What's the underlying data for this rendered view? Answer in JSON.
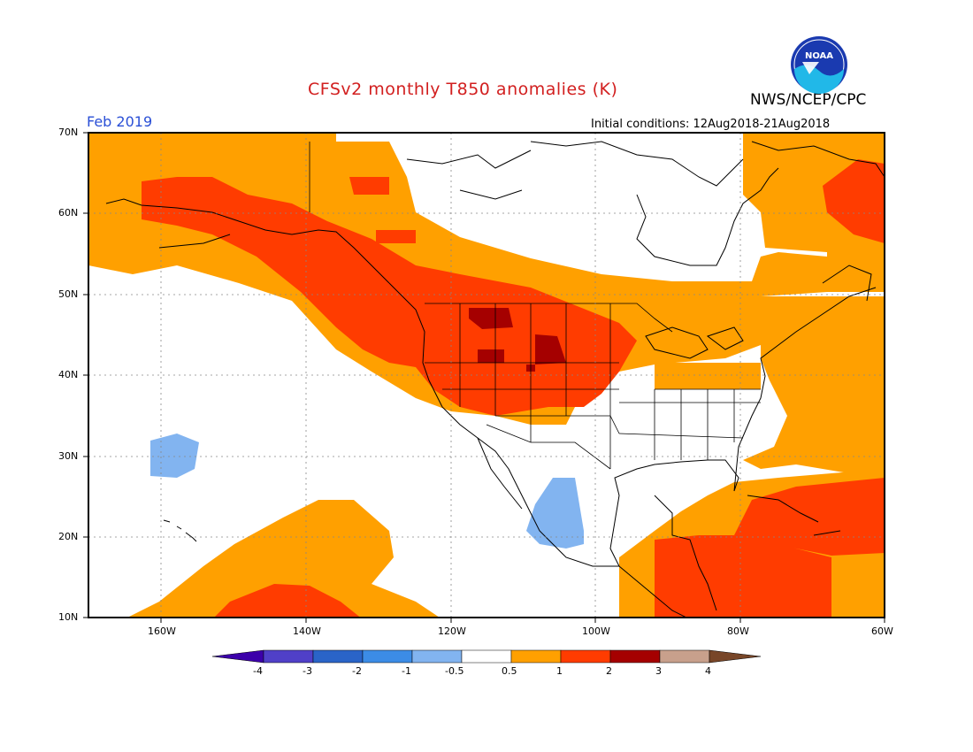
{
  "header": {
    "title": "CFSv2 monthly T850 anomalies (K)",
    "org": "NWS/NCEP/CPC",
    "date": "Feb 2019",
    "init": "Initial conditions: 12Aug2018-21Aug2018"
  },
  "logo": {
    "text": "NOAA",
    "icon": "noaa-logo-icon"
  },
  "axes": {
    "lat_labels": [
      "70N",
      "60N",
      "50N",
      "40N",
      "30N",
      "20N",
      "10N"
    ],
    "lon_labels": [
      "160W",
      "140W",
      "120W",
      "100W",
      "80W",
      "60W"
    ]
  },
  "legend": {
    "labels": [
      "-4",
      "-3",
      "-2",
      "-1",
      "-0.5",
      "0.5",
      "1",
      "2",
      "3",
      "4"
    ],
    "colors": [
      "#3c00aa",
      "#5040c8",
      "#2a64c8",
      "#3c8ce6",
      "#82b4f0",
      "#ffffff",
      "#ffa000",
      "#ff3c00",
      "#a50000",
      "#c8a08c",
      "#784628"
    ]
  },
  "map_colors": {
    "land_line": "#000000",
    "grid": "#888888",
    "orange": "#ffa000",
    "red": "#ff3c00",
    "darkred": "#a50000",
    "blue": "#82b4f0"
  }
}
